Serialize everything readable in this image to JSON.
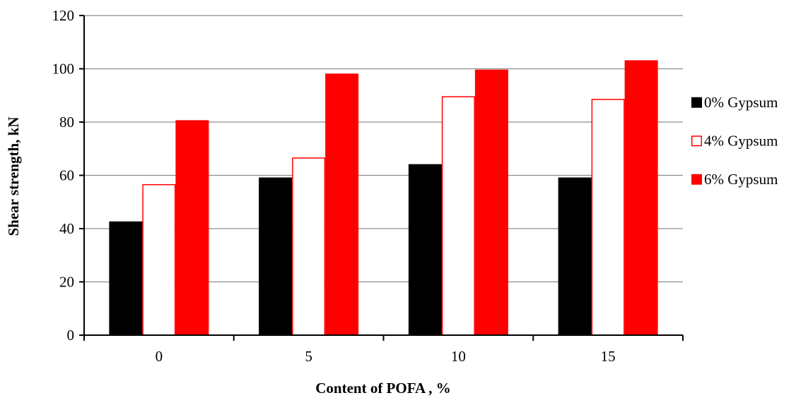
{
  "chart_data": {
    "type": "bar",
    "title": "",
    "xlabel": "Content of POFA , %",
    "ylabel": "Shear strength, kN",
    "categories": [
      "0",
      "5",
      "10",
      "15"
    ],
    "ylim": [
      0,
      120
    ],
    "yticks": [
      "0",
      "20",
      "40",
      "60",
      "80",
      "100",
      "120"
    ],
    "grid": true,
    "legend_position": "right",
    "series": [
      {
        "name": "0% Gypsum",
        "values": [
          42.5,
          59,
          64,
          59
        ],
        "fill": "#000000",
        "stroke": "#000000"
      },
      {
        "name": "4% Gypsum",
        "values": [
          56.5,
          66.5,
          89.5,
          88.5
        ],
        "fill": "#ffffff",
        "stroke": "#ff0000"
      },
      {
        "name": "6% Gypsum",
        "values": [
          80.5,
          98,
          99.5,
          103
        ],
        "fill": "#ff0000",
        "stroke": "#ff0000"
      }
    ]
  }
}
